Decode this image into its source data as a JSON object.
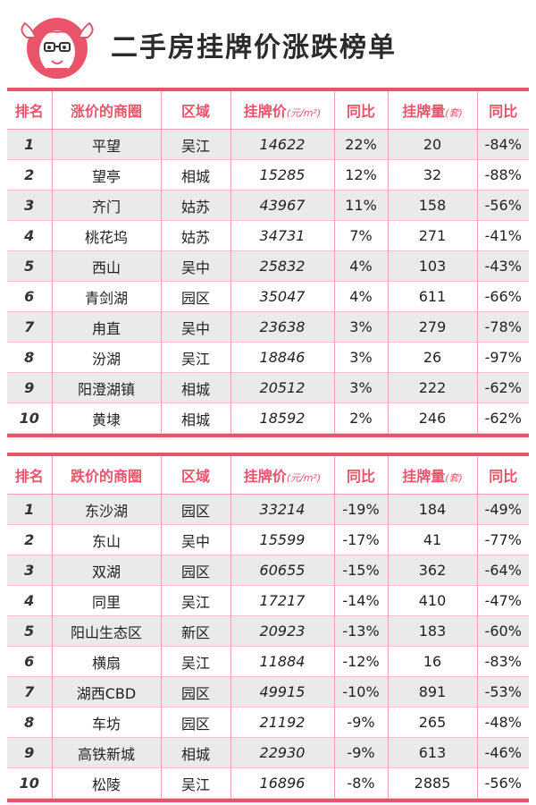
{
  "page": {
    "title": "二手房挂牌价涨跌榜单"
  },
  "colors": {
    "accent": "#e9546b",
    "row_alt": "#eaeaea"
  },
  "rise_table": {
    "headers": [
      "排名",
      "涨价的商圈",
      "区域",
      "挂牌价",
      "(元/m²)",
      "同比",
      "挂牌量",
      "(套)",
      "同比"
    ],
    "rows": [
      {
        "rank": "1",
        "area": "平望",
        "district": "吴江",
        "price": "14622",
        "yoy_price": "22%",
        "volume": "20",
        "yoy_volume": "-84%"
      },
      {
        "rank": "2",
        "area": "望亭",
        "district": "相城",
        "price": "15285",
        "yoy_price": "12%",
        "volume": "32",
        "yoy_volume": "-88%"
      },
      {
        "rank": "3",
        "area": "齐门",
        "district": "姑苏",
        "price": "43967",
        "yoy_price": "11%",
        "volume": "158",
        "yoy_volume": "-56%"
      },
      {
        "rank": "4",
        "area": "桃花坞",
        "district": "姑苏",
        "price": "34731",
        "yoy_price": "7%",
        "volume": "271",
        "yoy_volume": "-41%"
      },
      {
        "rank": "5",
        "area": "西山",
        "district": "吴中",
        "price": "25832",
        "yoy_price": "4%",
        "volume": "103",
        "yoy_volume": "-43%"
      },
      {
        "rank": "6",
        "area": "青剑湖",
        "district": "园区",
        "price": "35047",
        "yoy_price": "4%",
        "volume": "611",
        "yoy_volume": "-66%"
      },
      {
        "rank": "7",
        "area": "甪直",
        "district": "吴中",
        "price": "23638",
        "yoy_price": "3%",
        "volume": "279",
        "yoy_volume": "-78%"
      },
      {
        "rank": "8",
        "area": "汾湖",
        "district": "吴江",
        "price": "18846",
        "yoy_price": "3%",
        "volume": "26",
        "yoy_volume": "-97%"
      },
      {
        "rank": "9",
        "area": "阳澄湖镇",
        "district": "相城",
        "price": "20512",
        "yoy_price": "3%",
        "volume": "222",
        "yoy_volume": "-62%"
      },
      {
        "rank": "10",
        "area": "黄埭",
        "district": "相城",
        "price": "18592",
        "yoy_price": "2%",
        "volume": "246",
        "yoy_volume": "-62%"
      }
    ]
  },
  "fall_table": {
    "headers": [
      "排名",
      "跌价的商圈",
      "区域",
      "挂牌价",
      "(元/m²)",
      "同比",
      "挂牌量",
      "(套)",
      "同比"
    ],
    "rows": [
      {
        "rank": "1",
        "area": "东沙湖",
        "district": "园区",
        "price": "33214",
        "yoy_price": "-19%",
        "volume": "184",
        "yoy_volume": "-49%"
      },
      {
        "rank": "2",
        "area": "东山",
        "district": "吴中",
        "price": "15599",
        "yoy_price": "-17%",
        "volume": "41",
        "yoy_volume": "-77%"
      },
      {
        "rank": "3",
        "area": "双湖",
        "district": "园区",
        "price": "60655",
        "yoy_price": "-15%",
        "volume": "362",
        "yoy_volume": "-64%"
      },
      {
        "rank": "4",
        "area": "同里",
        "district": "吴江",
        "price": "17217",
        "yoy_price": "-14%",
        "volume": "410",
        "yoy_volume": "-47%"
      },
      {
        "rank": "5",
        "area": "阳山生态区",
        "district": "新区",
        "price": "20923",
        "yoy_price": "-13%",
        "volume": "183",
        "yoy_volume": "-60%"
      },
      {
        "rank": "6",
        "area": "横扇",
        "district": "吴江",
        "price": "11884",
        "yoy_price": "-12%",
        "volume": "16",
        "yoy_volume": "-83%"
      },
      {
        "rank": "7",
        "area": "湖西CBD",
        "district": "园区",
        "price": "49915",
        "yoy_price": "-10%",
        "volume": "891",
        "yoy_volume": "-53%"
      },
      {
        "rank": "8",
        "area": "车坊",
        "district": "园区",
        "price": "21192",
        "yoy_price": "-9%",
        "volume": "265",
        "yoy_volume": "-48%"
      },
      {
        "rank": "9",
        "area": "高铁新城",
        "district": "相城",
        "price": "22930",
        "yoy_price": "-9%",
        "volume": "613",
        "yoy_volume": "-46%"
      },
      {
        "rank": "10",
        "area": "松陵",
        "district": "吴江",
        "price": "16896",
        "yoy_price": "-8%",
        "volume": "2885",
        "yoy_volume": "-56%"
      }
    ]
  }
}
